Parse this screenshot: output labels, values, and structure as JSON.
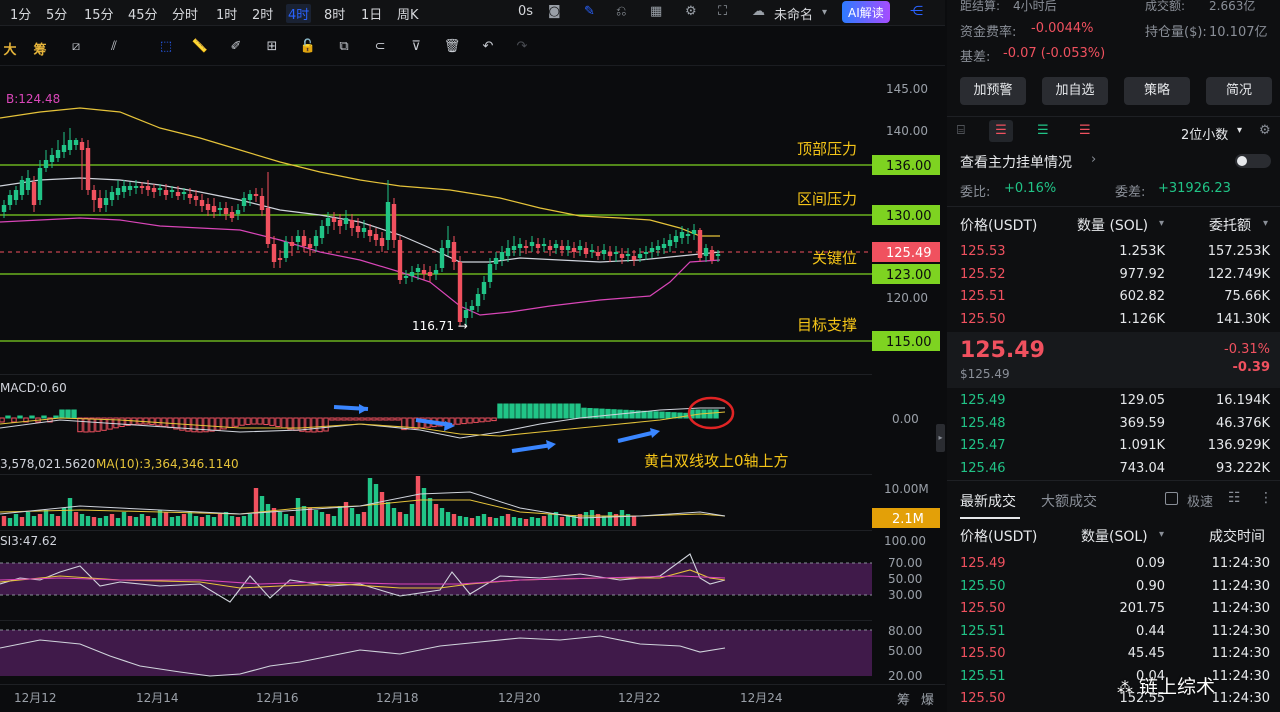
{
  "toolbar": {
    "timeframes": [
      "1分",
      "5分",
      "15分",
      "45分",
      "分时",
      "1时",
      "2时",
      "4时",
      "8时",
      "1日",
      "周K"
    ],
    "active_timeframe": "4时",
    "countdown": "0s",
    "layout_name": "未命名",
    "ai_button": "AI解读",
    "left_labels": [
      "大",
      "筹"
    ]
  },
  "chart": {
    "boll_label": "B:124.48",
    "price_axis": [
      "145.00",
      "140.00",
      "130.00",
      "120.00"
    ],
    "levels": [
      {
        "label": "顶部压力",
        "price": "136.00",
        "color": "#7ed321"
      },
      {
        "label": "区间压力",
        "price": "130.00",
        "color": "#7ed321"
      },
      {
        "label": "关键位",
        "price": "125.49",
        "color": "#f0515f"
      },
      {
        "label": "",
        "price": "123.00",
        "color": "#7ed321"
      },
      {
        "label": "目标支撑",
        "price": "115.00",
        "color": "#7ed321"
      }
    ],
    "low_marker": "116.71 →",
    "macd_label": "MACD:0.60",
    "macd_axis": "0.00",
    "macd_annotation": "黄白双线攻上0轴上方",
    "vol_label": "3,578,021.5620",
    "vol_ma_label": "MA(10):3,364,346.1140",
    "vol_axis": "10.00M",
    "vol_tag": "2.1M",
    "rsi_label": "SI3:47.62",
    "rsi_axis": [
      "100.00",
      "70.00",
      "50.00",
      "30.00"
    ],
    "kdj_axis": [
      "80.00",
      "50.00",
      "20.00"
    ],
    "dates": [
      "12月12",
      "12月14",
      "12月16",
      "12月18",
      "12月20",
      "12月22",
      "12月24"
    ],
    "bottom_right": [
      "筹",
      "爆"
    ],
    "watermark": "链上综术"
  },
  "right": {
    "settle_label": "距结算:",
    "settle_value": "4小时后",
    "turnover_label": "成交额:",
    "turnover_value": "2.663亿",
    "funding_label": "资金费率:",
    "funding_value": "-0.0044%",
    "oi_label": "持仓量($):",
    "oi_value": "10.107亿",
    "basis_label": "基差:",
    "basis_value": "-0.07 (-0.053%)",
    "buttons": [
      "加预警",
      "加自选",
      "策略",
      "简况"
    ],
    "decimals": "2位小数",
    "main_orders": "查看主力挂单情况",
    "ratio_label": "委比:",
    "ratio_value": "+0.16%",
    "diff_label": "委差:",
    "diff_value": "+31926.23",
    "ob_headers": [
      "价格(USDT)",
      "数量 (SOL)",
      "委托额"
    ],
    "asks": [
      [
        "125.53",
        "1.253K",
        "157.253K"
      ],
      [
        "125.52",
        "977.92",
        "122.749K"
      ],
      [
        "125.51",
        "602.82",
        "75.66K"
      ],
      [
        "125.50",
        "1.126K",
        "141.30K"
      ]
    ],
    "last_price": "125.49",
    "last_usd": "$125.49",
    "change_pct": "-0.31%",
    "change_abs": "-0.39",
    "bids": [
      [
        "125.49",
        "129.05",
        "16.194K"
      ],
      [
        "125.48",
        "369.59",
        "46.376K"
      ],
      [
        "125.47",
        "1.091K",
        "136.929K"
      ],
      [
        "125.46",
        "743.04",
        "93.222K"
      ]
    ],
    "tabs": [
      "最新成交",
      "大额成交"
    ],
    "fast_label": "极速",
    "trade_headers": [
      "价格(USDT)",
      "数量(SOL)",
      "成交时间"
    ],
    "trades": [
      [
        "125.49",
        "0.09",
        "11:24:30",
        "red"
      ],
      [
        "125.50",
        "0.90",
        "11:24:30",
        "green"
      ],
      [
        "125.50",
        "201.75",
        "11:24:30",
        "red"
      ],
      [
        "125.51",
        "0.44",
        "11:24:30",
        "green"
      ],
      [
        "125.50",
        "45.45",
        "11:24:30",
        "red"
      ],
      [
        "125.51",
        "0.04",
        "11:24:30",
        "green"
      ],
      [
        "125.50",
        "152.55",
        "11:24:30",
        "red"
      ]
    ]
  }
}
